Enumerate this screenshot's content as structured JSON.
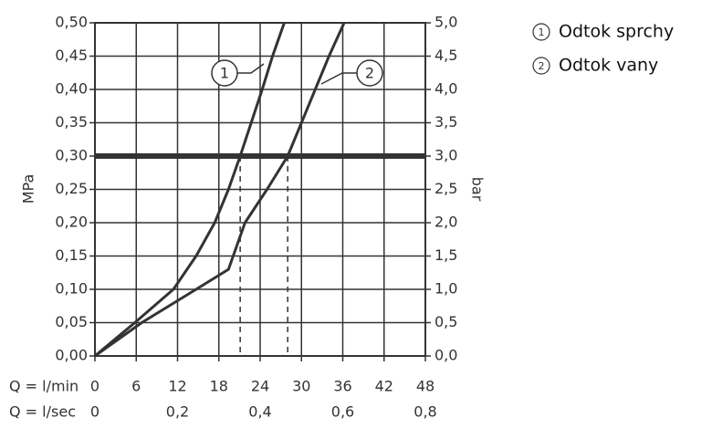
{
  "chart_data": {
    "type": "line",
    "xlabel": "Q = l/min",
    "x2label": "Q = l/sec",
    "ylabel": "MPa",
    "y2label": "bar",
    "xlim": [
      0,
      48
    ],
    "xticks": [
      0,
      6,
      12,
      18,
      24,
      30,
      36,
      42,
      48
    ],
    "x2lim": [
      0,
      0.8
    ],
    "x2ticks": [
      0,
      {
        "value": 0.2,
        "label": "0,2"
      },
      {
        "value": 0.4,
        "label": "0,4"
      },
      {
        "value": 0.6,
        "label": "0,6"
      },
      {
        "value": 0.8,
        "label": "0,8"
      }
    ],
    "ylim": [
      0,
      0.5
    ],
    "yticks": [
      {
        "value": 0,
        "label": "0,00"
      },
      {
        "value": 0.05,
        "label": "0,05"
      },
      {
        "value": 0.1,
        "label": "0,10"
      },
      {
        "value": 0.15,
        "label": "0,15"
      },
      {
        "value": 0.2,
        "label": "0,20"
      },
      {
        "value": 0.25,
        "label": "0,25"
      },
      {
        "value": 0.3,
        "label": "0,30"
      },
      {
        "value": 0.35,
        "label": "0,35"
      },
      {
        "value": 0.4,
        "label": "0,40"
      },
      {
        "value": 0.45,
        "label": "0,45"
      },
      {
        "value": 0.5,
        "label": "0,50"
      }
    ],
    "y2lim": [
      0,
      5
    ],
    "y2ticks": [
      {
        "value": 0,
        "label": "0,0"
      },
      {
        "value": 0.5,
        "label": "0,5"
      },
      {
        "value": 1,
        "label": "1,0"
      },
      {
        "value": 1.5,
        "label": "1,5"
      },
      {
        "value": 2,
        "label": "2,0"
      },
      {
        "value": 2.5,
        "label": "2,5"
      },
      {
        "value": 3,
        "label": "3,0"
      },
      {
        "value": 3.5,
        "label": "3,5"
      },
      {
        "value": 4,
        "label": "4,0"
      },
      {
        "value": 4.5,
        "label": "4,5"
      },
      {
        "value": 5,
        "label": "5,0"
      }
    ],
    "grid": true,
    "hline": 0.3,
    "vlines": [
      21.1,
      28
    ],
    "series": [
      {
        "name": "Odtok sprchy",
        "label": "1",
        "color": "#333333",
        "x": [
          0,
          5.8,
          11.4,
          14.7,
          17.4,
          19.4,
          21.1,
          22.7,
          24.3,
          25.8,
          27.5
        ],
        "values": [
          0,
          0.05,
          0.1,
          0.15,
          0.2,
          0.25,
          0.3,
          0.35,
          0.4,
          0.45,
          0.5
        ]
      },
      {
        "name": "Odtok vany",
        "label": "2",
        "color": "#333333",
        "x": [
          0,
          6.8,
          14.7,
          19.4,
          21.8,
          25,
          28,
          30,
          32,
          34,
          36.2
        ],
        "values": [
          0,
          0.05,
          0.1,
          0.13,
          0.2,
          0.25,
          0.3,
          0.35,
          0.4,
          0.45,
          0.5
        ]
      }
    ]
  }
}
